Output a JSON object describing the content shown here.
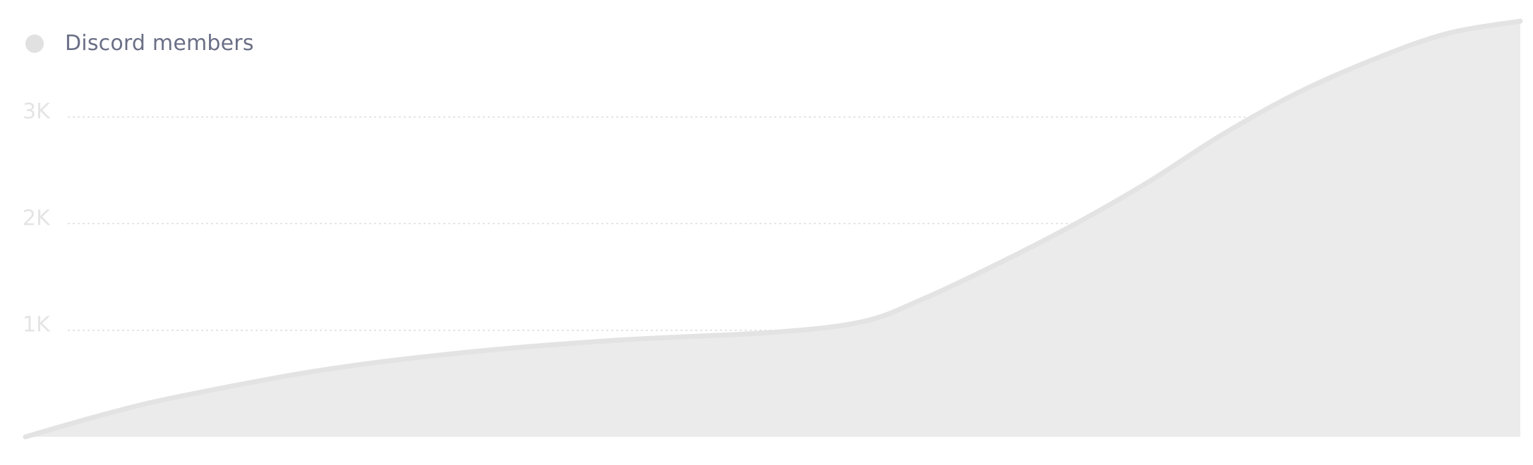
{
  "legend": {
    "label": "Discord members",
    "color": "#e1e1e1"
  },
  "chart_data": {
    "type": "area",
    "title": "",
    "xlabel": "",
    "ylabel": "",
    "legend_position": "top-left",
    "grid": true,
    "ylim": [
      0,
      3900
    ],
    "y_ticks": [
      {
        "value": 1000,
        "label": "1K"
      },
      {
        "value": 2000,
        "label": "2K"
      },
      {
        "value": 3000,
        "label": "3K"
      }
    ],
    "series": [
      {
        "name": "Discord members",
        "color": "#e3e3e3",
        "fill": "#ebebeb",
        "x": [
          0,
          0.05,
          0.1,
          0.2,
          0.3,
          0.4,
          0.5,
          0.56,
          0.6,
          0.65,
          0.7,
          0.75,
          0.8,
          0.85,
          0.9,
          0.95,
          1.0
        ],
        "values": [
          0,
          200,
          370,
          630,
          800,
          910,
          980,
          1080,
          1290,
          1620,
          1980,
          2380,
          2830,
          3220,
          3530,
          3780,
          3900
        ]
      }
    ]
  }
}
